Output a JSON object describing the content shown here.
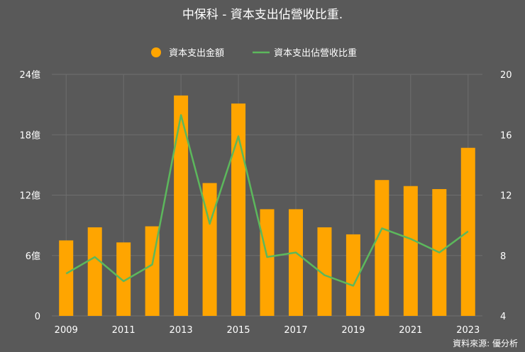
{
  "chart_data": {
    "type": "bar+line",
    "title": "中保科 - 資本支出佔營收比重.",
    "categories": [
      "2009",
      "2010",
      "2011",
      "2012",
      "2013",
      "2014",
      "2015",
      "2016",
      "2017",
      "2018",
      "2019",
      "2020",
      "2021",
      "2022",
      "2023"
    ],
    "x_tick_labels": [
      "2009",
      "2011",
      "2013",
      "2015",
      "2017",
      "2019",
      "2021",
      "2023"
    ],
    "series": [
      {
        "name": "資本支出金額",
        "type": "bar",
        "axis": "left",
        "color": "#FFA500",
        "values": [
          7.5,
          8.8,
          7.3,
          8.9,
          21.9,
          13.2,
          21.1,
          10.6,
          10.6,
          8.8,
          8.1,
          13.5,
          12.9,
          12.6,
          16.7
        ]
      },
      {
        "name": "資本支出佔營收比重",
        "type": "line",
        "axis": "right",
        "color": "#5CB85C",
        "values": [
          6.8,
          7.9,
          6.3,
          7.4,
          17.3,
          10.1,
          15.9,
          7.9,
          8.2,
          6.7,
          6.0,
          9.8,
          9.1,
          8.2,
          9.6
        ]
      }
    ],
    "y_left": {
      "ylim": [
        0,
        24
      ],
      "ticks": [
        0,
        6,
        12,
        18,
        24
      ],
      "tick_labels": [
        "0",
        "6億",
        "12億",
        "18億",
        "24億"
      ]
    },
    "y_right": {
      "ylim": [
        4,
        20
      ],
      "ticks": [
        4,
        8,
        12,
        16,
        20
      ],
      "tick_labels": [
        "4",
        "8",
        "12",
        "16",
        "20"
      ]
    },
    "legend_position": "top-center",
    "grid": true,
    "source_note": "資料來源: 優分析"
  },
  "colors": {
    "background": "#595959",
    "grid": "#6e6e6e",
    "text": "#ffffff"
  }
}
